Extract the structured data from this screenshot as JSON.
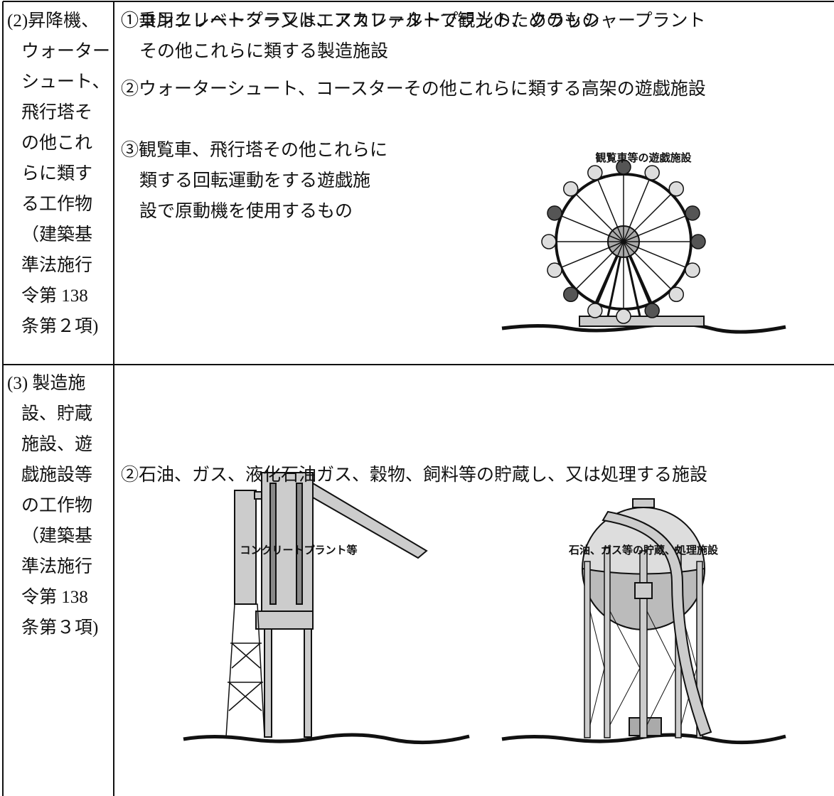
{
  "table": {
    "rows": [
      {
        "label_lines": [
          "(2)昇降機、",
          "ウォーター",
          "シュート、",
          "飛行塔そ",
          "の他これ",
          "らに類す",
          "る工作物",
          "（建築基",
          "準法施行",
          "令第 138",
          "条第２項)"
        ],
        "items": [
          {
            "lines": [
              "①乗用エレベーター又はエスカレーターで観光のためのもの"
            ]
          },
          {
            "lines": [
              "②ウォーターシュート、コースターその他これらに類する高架の遊戯施設"
            ]
          },
          {
            "lines": [
              "③観覧車、飛行塔その他これらに",
              "類する回転運動をする遊戯施",
              "設で原動機を使用するもの"
            ]
          }
        ],
        "figures": [
          {
            "caption": "観覧車等の遊戯施設"
          }
        ]
      },
      {
        "label_lines": [
          "(3) 製造施",
          "設、貯蔵",
          "施設、遊",
          "戯施設等",
          "の工作物",
          "（建築基",
          "準法施行",
          "令第 138",
          "条第３項)"
        ],
        "items": [
          {
            "lines": [
              "①コンクリートプラント、アスファルトプラント、クラッシャープラント",
              "その他これらに類する製造施設"
            ]
          },
          {
            "lines": [
              "②石油、ガス、液化石油ガス、穀物、飼料等の貯蔵し、又は処理する施設"
            ]
          }
        ],
        "figures": [
          {
            "caption": "コンクリートプラント等"
          },
          {
            "caption": "石油、ガス等の貯蔵、処理施設"
          }
        ]
      }
    ]
  }
}
